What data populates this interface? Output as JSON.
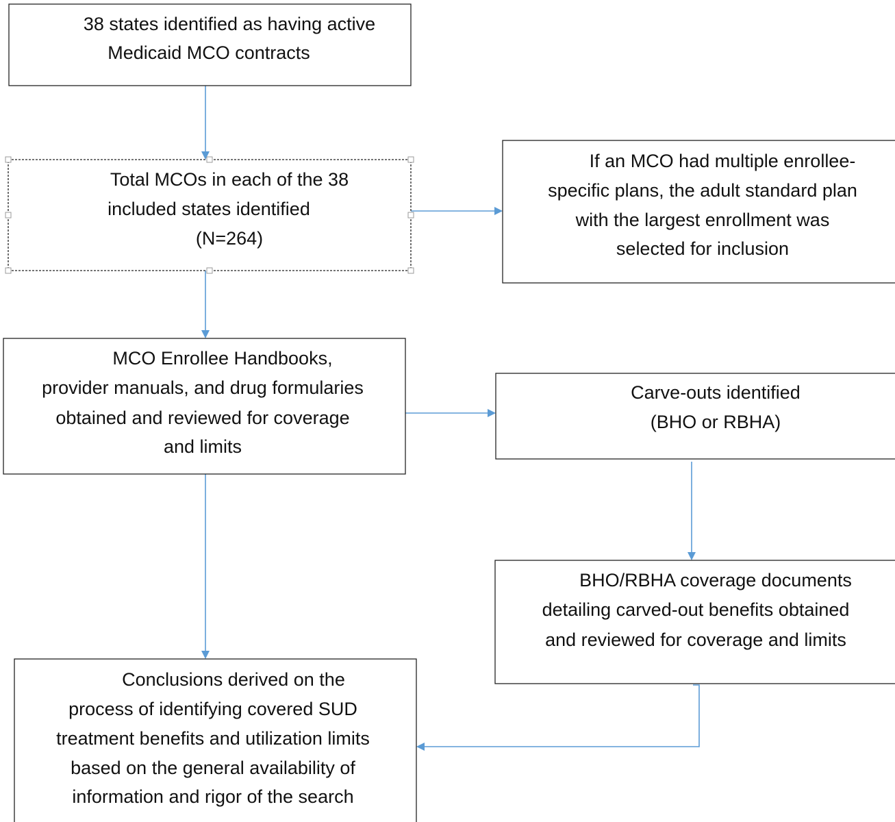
{
  "nodes": [
    {
      "lines": [
        "38 states identified as having active",
        "Medicaid MCO contracts"
      ]
    },
    {
      "lines": [
        "Total MCOs in each of the 38",
        "included states identified",
        "(N=264)"
      ]
    },
    {
      "lines": [
        "If an MCO had multiple enrollee-",
        "specific plans, the adult standard plan",
        "with the largest enrollment was",
        "selected for inclusion"
      ]
    },
    {
      "lines": [
        "MCO Enrollee Handbooks,",
        "provider manuals, and drug formularies",
        "obtained and reviewed for coverage",
        "and limits"
      ]
    },
    {
      "lines": [
        "Carve-outs identified",
        "(BHO or RBHA)"
      ]
    },
    {
      "lines": [
        "BHO/RBHA coverage documents",
        "detailing carved-out benefits obtained",
        "and reviewed for coverage and limits"
      ]
    },
    {
      "lines": [
        "Conclusions derived on the",
        "process of identifying covered SUD",
        "treatment benefits and utilization limits",
        "based on the general availability of",
        "information and rigor of the search"
      ]
    }
  ]
}
